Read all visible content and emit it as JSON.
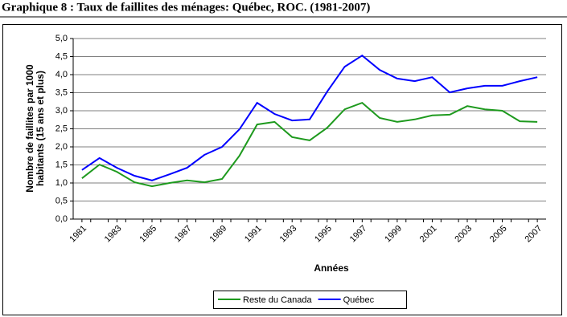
{
  "chart_data": {
    "type": "line",
    "title": "Graphique 8 : Taux de faillites des ménages: Québec, ROC. (1981-2007)",
    "xlabel": "Années",
    "ylabel": [
      "Nombre de faillites par 1000",
      "habitants (15 ans et plus)"
    ],
    "x": [
      1981,
      1982,
      1983,
      1984,
      1985,
      1986,
      1987,
      1988,
      1989,
      1990,
      1991,
      1992,
      1993,
      1994,
      1995,
      1996,
      1997,
      1998,
      1999,
      2000,
      2001,
      2002,
      2003,
      2004,
      2005,
      2006,
      2007
    ],
    "xlim": [
      1980.5,
      2007.5
    ],
    "xticks": [
      1981,
      1983,
      1985,
      1987,
      1989,
      1991,
      1993,
      1995,
      1997,
      1999,
      2001,
      2003,
      2005,
      2007
    ],
    "ylim": [
      0,
      5
    ],
    "yticks": [
      {
        "value": 0,
        "label": "0,0"
      },
      {
        "value": 0.5,
        "label": "0,5"
      },
      {
        "value": 1,
        "label": "1,0"
      },
      {
        "value": 1.5,
        "label": "1,5"
      },
      {
        "value": 2,
        "label": "2,0"
      },
      {
        "value": 2.5,
        "label": "2,5"
      },
      {
        "value": 3,
        "label": "3,0"
      },
      {
        "value": 3.5,
        "label": "3,5"
      },
      {
        "value": 4,
        "label": "4,0"
      },
      {
        "value": 4.5,
        "label": "4,5"
      },
      {
        "value": 5,
        "label": "5,0"
      }
    ],
    "grid": true,
    "legend": "bottom",
    "series": [
      {
        "name": "Reste du Canada",
        "color": "#1e9a1e",
        "values": [
          1.13,
          1.51,
          1.31,
          1.02,
          0.91,
          1.0,
          1.07,
          1.02,
          1.11,
          1.76,
          2.62,
          2.69,
          2.27,
          2.18,
          2.53,
          3.04,
          3.22,
          2.8,
          2.69,
          2.76,
          2.87,
          2.89,
          3.13,
          3.04,
          3.0,
          2.71,
          2.69
        ]
      },
      {
        "name": "Québec",
        "color": "#0000ff",
        "values": [
          1.36,
          1.69,
          1.42,
          1.2,
          1.07,
          1.24,
          1.42,
          1.78,
          2.0,
          2.49,
          3.22,
          2.91,
          2.73,
          2.76,
          3.53,
          4.22,
          4.53,
          4.13,
          3.89,
          3.82,
          3.93,
          3.51,
          3.62,
          3.69,
          3.69,
          3.82,
          3.93
        ]
      }
    ]
  }
}
